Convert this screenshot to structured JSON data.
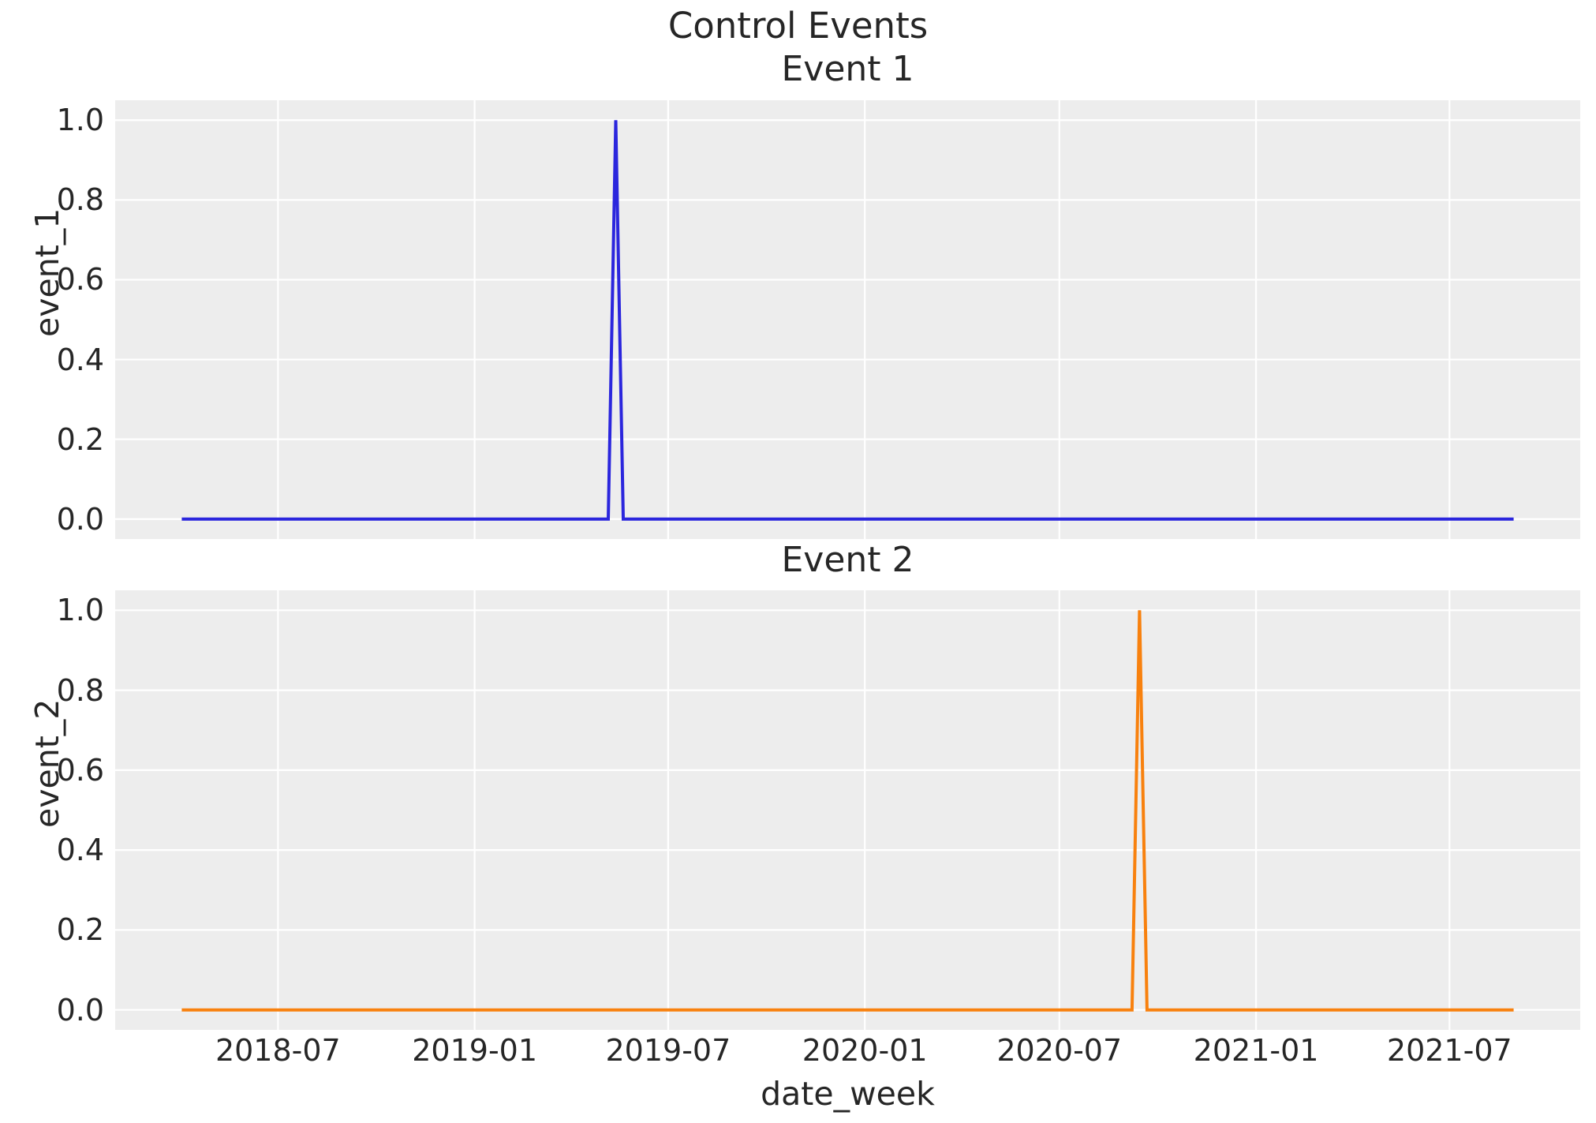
{
  "suptitle": "Control Events",
  "x_axis": {
    "label": "date_week",
    "tick_labels": [
      "2018-07",
      "2019-01",
      "2019-07",
      "2020-01",
      "2020-07",
      "2021-01",
      "2021-07"
    ]
  },
  "style": {
    "plot_background": "#ededed",
    "grid_color": "#ffffff",
    "text_color": "#262626",
    "grid_on": true,
    "legend": "none"
  },
  "chart_data": [
    {
      "type": "line",
      "title": "Event 1",
      "ylabel": "event_1",
      "line_color": "#2b26dd",
      "x_start": "2018-04-02",
      "x_end": "2021-08-30",
      "frequency": "weekly",
      "baseline_value": 0.0,
      "spike": {
        "date": "2019-05-13",
        "value": 1.0
      },
      "ylim": [
        0.0,
        1.0
      ],
      "ytick_labels": [
        "0.0",
        "0.2",
        "0.4",
        "0.6",
        "0.8",
        "1.0"
      ]
    },
    {
      "type": "line",
      "title": "Event 2",
      "ylabel": "event_2",
      "line_color": "#f8810e",
      "x_start": "2018-04-02",
      "x_end": "2021-08-30",
      "frequency": "weekly",
      "baseline_value": 0.0,
      "spike": {
        "date": "2020-09-14",
        "value": 1.0
      },
      "ylim": [
        0.0,
        1.0
      ],
      "ytick_labels": [
        "0.0",
        "0.2",
        "0.4",
        "0.6",
        "0.8",
        "1.0"
      ]
    }
  ]
}
